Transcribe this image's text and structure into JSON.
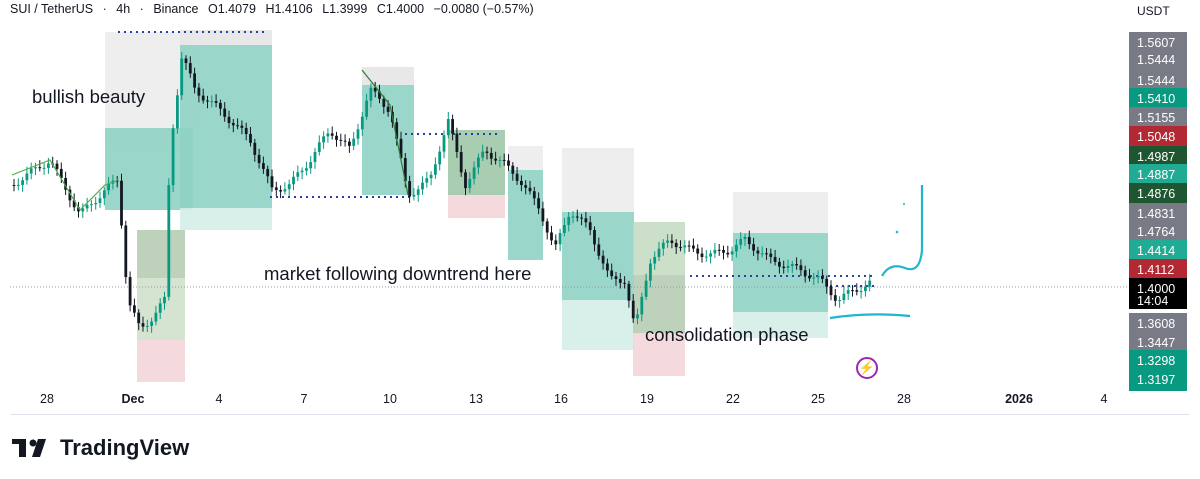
{
  "header": {
    "symbol": "SUI / TetherUS",
    "interval": "4h",
    "exchange": "Binance",
    "open": "O1.4079",
    "high": "H1.4106",
    "low": "L1.3999",
    "close": "C1.4000",
    "change": "−0.0080 (−0.57%)",
    "separator": "·"
  },
  "currency_label": "USDT",
  "price_tags": [
    {
      "label": "1.5607",
      "color": "#787b86"
    },
    {
      "label": "1.5444",
      "color": "#787b86"
    },
    {
      "label": "1.5444",
      "color": "#787b86"
    },
    {
      "label": "1.5410",
      "color": "#089981"
    },
    {
      "label": "1.5155",
      "color": "#787b86"
    },
    {
      "label": "1.5048",
      "color": "#b22833"
    },
    {
      "label": "1.4987",
      "color": "#1e5631"
    },
    {
      "label": "1.4887",
      "color": "#22ab94"
    },
    {
      "label": "1.4876",
      "color": "#1e5631"
    },
    {
      "label": "1.4831",
      "color": "#787b86"
    },
    {
      "label": "1.4764",
      "color": "#787b86"
    },
    {
      "label": "1.4414",
      "color": "#22ab94"
    },
    {
      "label": "1.4112",
      "color": "#b22833"
    },
    {
      "label": "1.4000",
      "color": "#000000"
    },
    {
      "label": "14:04",
      "color": "#000000"
    },
    {
      "label": "1.3608",
      "color": "#787b86"
    },
    {
      "label": "1.3447",
      "color": "#787b86"
    },
    {
      "label": "1.3298",
      "color": "#089981"
    },
    {
      "label": "1.3197",
      "color": "#089981"
    }
  ],
  "x_labels": [
    "28",
    "Dec",
    "4",
    "7",
    "10",
    "13",
    "16",
    "19",
    "22",
    "25",
    "28",
    "2026",
    "4"
  ],
  "annotations": {
    "bullish": "bullish beauty",
    "downtrend": "market following downtrend here",
    "consolidation": "consolidation phase"
  },
  "brand": "TradingView",
  "chart_data": {
    "type": "candlestick",
    "title": "SUI / TetherUS · 4h · Binance",
    "x_ticks": [
      "28",
      "Dec",
      "4",
      "7",
      "10",
      "13",
      "16",
      "19",
      "22",
      "25",
      "28",
      "2026",
      "4"
    ],
    "y_unit": "USDT",
    "ylim": [
      1.3197,
      1.5607
    ],
    "last_price": 1.4,
    "ohlc_last": {
      "open": 1.4079,
      "high": 1.4106,
      "low": 1.3999,
      "close": 1.4,
      "change": -0.008,
      "change_pct": -0.57
    },
    "colors": {
      "up": "#089981",
      "down": "#131722",
      "profit_zone": "#8fd3c4",
      "loss_zone": "#e0e0e0"
    }
  }
}
